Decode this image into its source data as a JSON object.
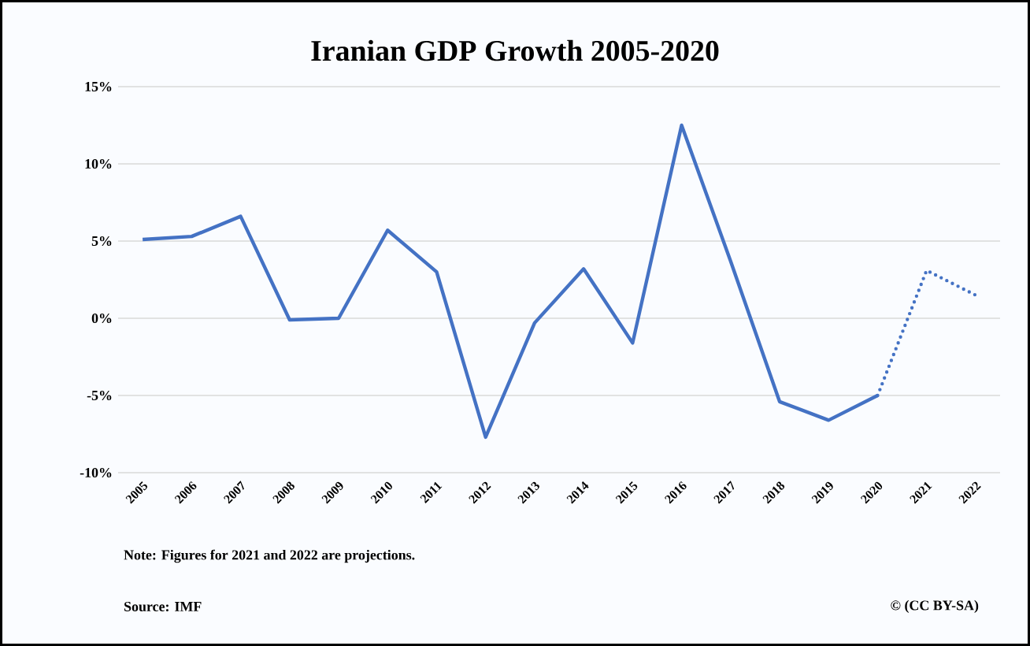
{
  "chart_data": {
    "type": "line",
    "title": "Iranian GDP Growth 2005-2020",
    "categories": [
      "2005",
      "2006",
      "2007",
      "2008",
      "2009",
      "2010",
      "2011",
      "2012",
      "2013",
      "2014",
      "2015",
      "2016",
      "2017",
      "2018",
      "2019",
      "2020",
      "2021",
      "2022"
    ],
    "series": [
      {
        "color": "#4472c4",
        "line_style": "solid",
        "values": [
          5.1,
          5.3,
          6.6,
          -0.1,
          0.0,
          5.7,
          3.0,
          -7.7,
          -0.3,
          3.2,
          -1.6,
          12.5,
          3.7,
          -5.4,
          -6.6,
          -5.0,
          null,
          null
        ]
      },
      {
        "color": "#4472c4",
        "line_style": "dotted",
        "values": [
          null,
          null,
          null,
          null,
          null,
          null,
          null,
          null,
          null,
          null,
          null,
          null,
          null,
          null,
          null,
          -5.0,
          3.1,
          1.5
        ]
      }
    ],
    "ylim": [
      -10,
      15
    ],
    "yticks": [
      {
        "value": -10,
        "label": "-10%"
      },
      {
        "value": -5,
        "label": "-5%"
      },
      {
        "value": 0,
        "label": "0%"
      },
      {
        "value": 5,
        "label": "5%"
      },
      {
        "value": 10,
        "label": "10%"
      },
      {
        "value": 15,
        "label": "15%"
      }
    ],
    "grid": "y",
    "marker": "none",
    "annotations": [
      "Note: Figures for 2021  and 2022  are projections.",
      "Source: IMF",
      "© (CC BY-SA)"
    ]
  }
}
